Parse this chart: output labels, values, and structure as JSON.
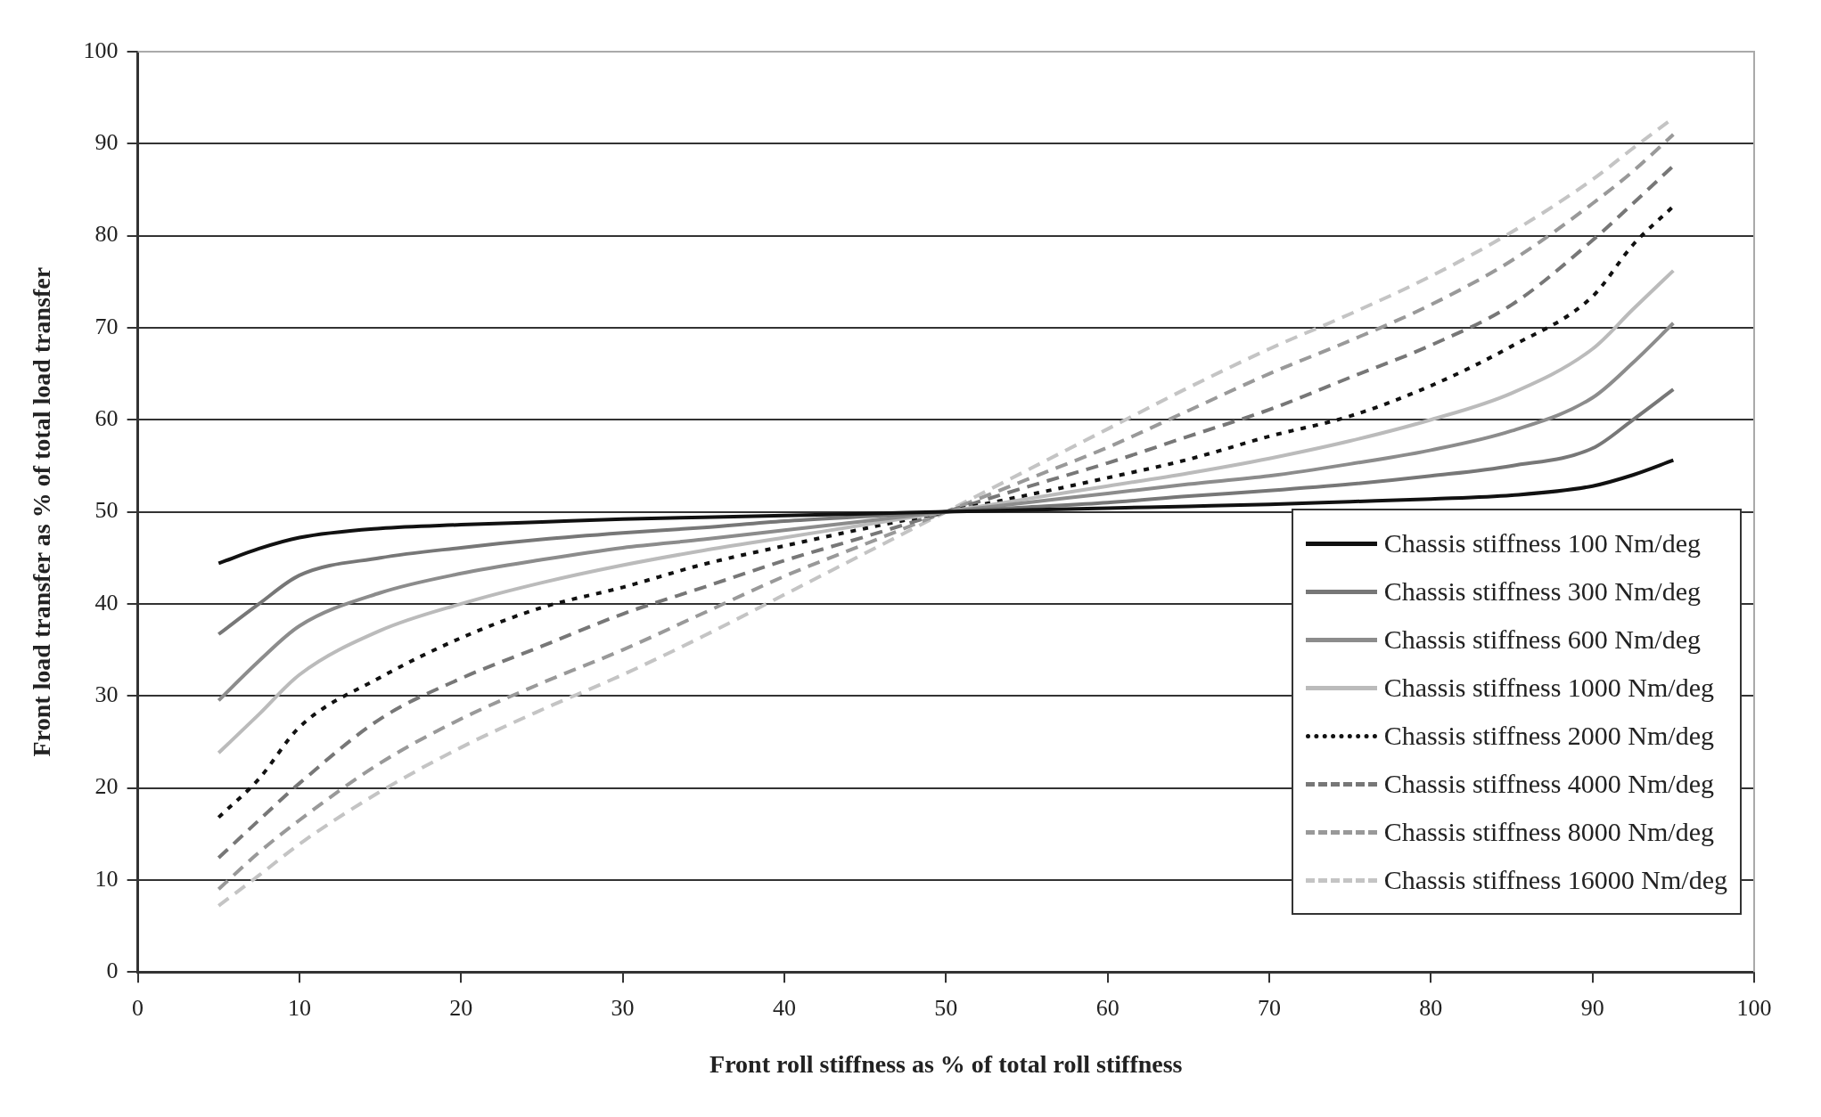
{
  "chart_data": {
    "type": "line",
    "xlabel": "Front roll stiffness as % of total roll stiffness",
    "ylabel": "Front load transfer as % of total load transfer",
    "x": [
      5,
      7.5,
      10,
      15,
      20,
      25,
      30,
      35,
      40,
      45,
      50,
      55,
      60,
      65,
      70,
      75,
      80,
      85,
      90,
      92.5,
      95
    ],
    "xlim": [
      0,
      100
    ],
    "xticks": [
      0,
      10,
      20,
      30,
      40,
      50,
      60,
      70,
      80,
      90,
      100
    ],
    "ylim": [
      0,
      100
    ],
    "yticks": [
      0,
      10,
      20,
      30,
      40,
      50,
      60,
      70,
      80,
      90,
      100
    ],
    "grid": "y",
    "legend": "bottom right",
    "marker": "none",
    "series": [
      {
        "name": "Chassis stiffness 100 Nm/deg",
        "color": "#111111",
        "line_style": "solid",
        "values": [
          44.4,
          46.0,
          47.2,
          48.2,
          48.6,
          48.9,
          49.2,
          49.4,
          49.6,
          49.8,
          50,
          50.2,
          50.4,
          50.6,
          50.8,
          51.1,
          51.4,
          51.8,
          52.8,
          54.0,
          55.6
        ]
      },
      {
        "name": "Chassis stiffness 300 Nm/deg",
        "color": "#777777",
        "line_style": "solid",
        "values": [
          36.7,
          40.0,
          43.1,
          45.0,
          46.1,
          47.0,
          47.7,
          48.3,
          49.0,
          49.5,
          50,
          50.5,
          51.0,
          51.7,
          52.3,
          53.0,
          53.9,
          55.0,
          56.9,
          60.0,
          63.3
        ]
      },
      {
        "name": "Chassis stiffness 600 Nm/deg",
        "color": "#8c8c8c",
        "line_style": "solid",
        "values": [
          29.5,
          33.8,
          37.6,
          41.2,
          43.3,
          44.8,
          46.1,
          47.0,
          48.0,
          49.0,
          50,
          51.0,
          52.0,
          53.0,
          53.9,
          55.2,
          56.7,
          58.8,
          62.4,
          66.2,
          70.5
        ]
      },
      {
        "name": "Chassis stiffness 1000 Nm/deg",
        "color": "#bbbbbb",
        "line_style": "solid",
        "values": [
          23.8,
          28.0,
          32.3,
          37.1,
          40.0,
          42.3,
          44.2,
          45.8,
          47.2,
          48.6,
          50,
          51.4,
          52.8,
          54.2,
          55.8,
          57.7,
          60.0,
          62.9,
          67.7,
          72.0,
          76.2
        ]
      },
      {
        "name": "Chassis stiffness 2000 Nm/deg",
        "color": "#111111",
        "line_style": "dotted",
        "values": [
          16.8,
          21.0,
          26.6,
          32.0,
          36.3,
          39.6,
          41.8,
          44.3,
          46.3,
          48.2,
          50,
          51.8,
          53.7,
          55.7,
          58.2,
          60.4,
          63.7,
          68.0,
          73.4,
          79.0,
          83.2
        ]
      },
      {
        "name": "Chassis stiffness 4000 Nm/deg",
        "color": "#777777",
        "line_style": "dashed",
        "values": [
          12.4,
          16.5,
          20.5,
          27.5,
          31.9,
          35.4,
          38.9,
          41.8,
          44.7,
          47.3,
          50,
          52.7,
          55.3,
          58.2,
          61.1,
          64.6,
          68.1,
          72.5,
          79.5,
          83.5,
          87.6
        ]
      },
      {
        "name": "Chassis stiffness 8000 Nm/deg",
        "color": "#999999",
        "line_style": "dashed",
        "values": [
          9.0,
          13.0,
          16.5,
          22.7,
          27.5,
          31.4,
          35.0,
          39.0,
          43.0,
          46.5,
          50,
          53.5,
          57.0,
          61.0,
          65.0,
          68.6,
          72.5,
          77.3,
          83.5,
          87.0,
          91.0
        ]
      },
      {
        "name": "Chassis stiffness 16000 Nm/deg",
        "color": "#c4c4c4",
        "line_style": "dashed",
        "values": [
          7.2,
          10.5,
          13.9,
          19.6,
          24.4,
          28.5,
          32.3,
          36.5,
          41.0,
          45.5,
          50,
          54.5,
          59.0,
          63.5,
          67.7,
          71.5,
          75.6,
          80.4,
          86.1,
          89.5,
          92.8
        ]
      }
    ]
  }
}
